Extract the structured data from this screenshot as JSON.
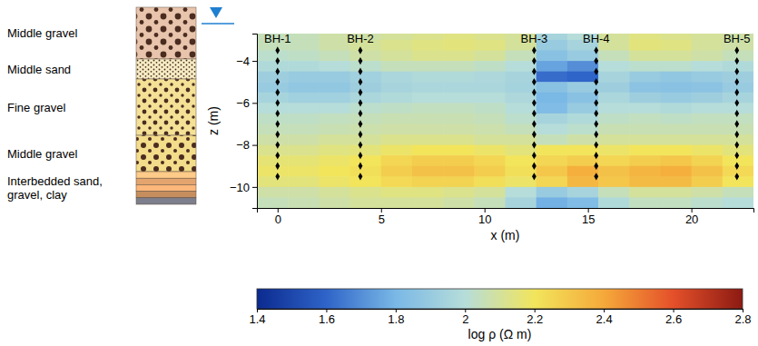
{
  "chart_data": {
    "type": "heatmap",
    "x_label": "x (m)",
    "y_label": "z (m)",
    "xlim": [
      -1,
      23
    ],
    "ylim": [
      -11,
      -2.7
    ],
    "xticks": [
      0,
      5,
      10,
      15,
      20
    ],
    "yticks": [
      {
        "value": -4,
        "label": "−4"
      },
      {
        "value": -6,
        "label": "−6"
      },
      {
        "value": -8,
        "label": "−8"
      },
      {
        "value": -10,
        "label": "−10"
      }
    ],
    "cells": {
      "x_edges": [
        -1,
        0.5,
        2,
        3.5,
        5,
        6.5,
        8,
        9.5,
        11,
        12.5,
        14,
        15.5,
        17,
        18.5,
        20,
        21.5,
        23
      ],
      "z_edges": [
        -2.5,
        -3,
        -3.5,
        -4,
        -4.5,
        -5,
        -5.5,
        -6,
        -6.5,
        -7,
        -7.5,
        -8,
        -8.5,
        -9,
        -9.5,
        -10,
        -10.5,
        -11
      ],
      "values": [
        [
          2.05,
          2.05,
          2.08,
          2.08,
          2.1,
          2.12,
          2.14,
          2.12,
          2.1,
          1.95,
          2.0,
          2.1,
          2.14,
          2.12,
          2.1,
          2.08
        ],
        [
          2.05,
          2.05,
          2.08,
          2.1,
          2.12,
          2.14,
          2.15,
          2.14,
          2.1,
          1.9,
          1.95,
          2.1,
          2.15,
          2.14,
          2.1,
          2.08
        ],
        [
          2.02,
          2.03,
          2.05,
          2.08,
          2.1,
          2.12,
          2.12,
          2.1,
          2.05,
          1.85,
          1.9,
          2.05,
          2.1,
          2.1,
          2.08,
          2.05
        ],
        [
          1.98,
          1.98,
          2.0,
          2.02,
          2.05,
          2.05,
          2.05,
          2.03,
          2.0,
          1.75,
          1.7,
          2.0,
          2.02,
          2.02,
          2.0,
          1.98
        ],
        [
          1.92,
          1.9,
          1.9,
          1.93,
          1.96,
          1.98,
          1.98,
          1.97,
          1.95,
          1.62,
          1.6,
          1.95,
          1.9,
          1.88,
          1.9,
          1.92
        ],
        [
          1.9,
          1.88,
          1.88,
          1.92,
          1.95,
          1.96,
          1.96,
          1.96,
          1.94,
          1.85,
          1.9,
          1.92,
          1.86,
          1.85,
          1.86,
          1.9
        ],
        [
          1.95,
          1.93,
          1.93,
          1.96,
          1.98,
          2.0,
          2.0,
          2.0,
          1.97,
          1.8,
          1.85,
          1.96,
          1.92,
          1.9,
          1.92,
          1.95
        ],
        [
          2.0,
          2.0,
          2.0,
          2.02,
          2.03,
          2.04,
          2.04,
          2.03,
          2.0,
          1.82,
          1.9,
          2.0,
          2.0,
          1.98,
          2.0,
          2.0
        ],
        [
          2.03,
          2.03,
          2.04,
          2.05,
          2.06,
          2.06,
          2.06,
          2.05,
          2.02,
          1.95,
          1.98,
          2.03,
          2.04,
          2.03,
          2.04,
          2.04
        ],
        [
          2.05,
          2.05,
          2.06,
          2.07,
          2.08,
          2.08,
          2.08,
          2.07,
          2.05,
          2.0,
          2.02,
          2.06,
          2.06,
          2.06,
          2.06,
          2.06
        ],
        [
          2.08,
          2.08,
          2.1,
          2.1,
          2.12,
          2.12,
          2.12,
          2.1,
          2.1,
          2.05,
          2.08,
          2.1,
          2.1,
          2.1,
          2.1,
          2.1
        ],
        [
          2.12,
          2.12,
          2.14,
          2.15,
          2.18,
          2.2,
          2.2,
          2.18,
          2.15,
          2.2,
          2.2,
          2.18,
          2.2,
          2.2,
          2.18,
          2.15
        ],
        [
          2.16,
          2.16,
          2.18,
          2.2,
          2.25,
          2.28,
          2.28,
          2.25,
          2.2,
          2.25,
          2.28,
          2.25,
          2.28,
          2.3,
          2.26,
          2.2
        ],
        [
          2.18,
          2.18,
          2.2,
          2.22,
          2.28,
          2.32,
          2.32,
          2.28,
          2.22,
          2.3,
          2.38,
          2.32,
          2.36,
          2.38,
          2.32,
          2.24
        ],
        [
          2.15,
          2.15,
          2.18,
          2.2,
          2.24,
          2.26,
          2.26,
          2.22,
          2.18,
          2.25,
          2.35,
          2.3,
          2.34,
          2.34,
          2.28,
          2.2
        ],
        [
          2.08,
          2.08,
          2.1,
          2.12,
          2.14,
          2.14,
          2.12,
          2.1,
          2.0,
          1.9,
          1.95,
          2.05,
          2.1,
          2.1,
          2.08,
          2.05
        ],
        [
          2.05,
          2.06,
          2.08,
          2.1,
          2.1,
          2.1,
          2.08,
          2.05,
          1.95,
          1.78,
          1.82,
          1.98,
          2.04,
          2.04,
          2.02,
          2.0
        ]
      ]
    },
    "colorbar": {
      "range": [
        1.4,
        2.8
      ],
      "ticks": [
        1.4,
        1.6,
        1.8,
        2,
        2.2,
        2.4,
        2.6,
        2.8
      ],
      "label": "log ρ (Ω m)"
    },
    "series": [
      {
        "name": "BH-1",
        "type": "scatter",
        "marker": "diamond",
        "color": "#000000",
        "x": [
          0,
          0,
          0,
          0,
          0,
          0,
          0,
          0,
          0,
          0,
          0,
          0,
          0
        ],
        "values": [
          -3.5,
          -4,
          -4.5,
          -5,
          -5.5,
          -6,
          -6.5,
          -7,
          -7.5,
          -8,
          -8.5,
          -9,
          -9.5
        ]
      },
      {
        "name": "BH-2",
        "type": "scatter",
        "marker": "diamond",
        "color": "#000000",
        "x": [
          4,
          4,
          4,
          4,
          4,
          4,
          4,
          4,
          4,
          4,
          4,
          4,
          4
        ],
        "values": [
          -3.5,
          -4,
          -4.5,
          -5,
          -5.5,
          -6,
          -6.5,
          -7,
          -7.5,
          -8,
          -8.5,
          -9,
          -9.5
        ]
      },
      {
        "name": "BH-3",
        "type": "scatter",
        "marker": "diamond",
        "color": "#000000",
        "x": [
          12.4,
          12.4,
          12.4,
          12.4,
          12.4,
          12.4,
          12.4,
          12.4,
          12.4,
          12.4,
          12.4,
          12.4,
          12.4
        ],
        "values": [
          -3.5,
          -4,
          -4.5,
          -5,
          -5.5,
          -6,
          -6.5,
          -7,
          -7.5,
          -8,
          -8.5,
          -9,
          -9.5
        ]
      },
      {
        "name": "BH-4",
        "type": "scatter",
        "marker": "diamond",
        "color": "#000000",
        "x": [
          15.4,
          15.4,
          15.4,
          15.4,
          15.4,
          15.4,
          15.4,
          15.4,
          15.4,
          15.4,
          15.4,
          15.4,
          15.4
        ],
        "values": [
          -3.5,
          -4,
          -4.5,
          -5,
          -5.5,
          -6,
          -6.5,
          -7,
          -7.5,
          -8,
          -8.5,
          -9,
          -9.5
        ]
      },
      {
        "name": "BH-5",
        "type": "scatter",
        "marker": "diamond",
        "color": "#000000",
        "x": [
          22.2,
          22.2,
          22.2,
          22.2,
          22.2,
          22.2,
          22.2,
          22.2,
          22.2,
          22.2,
          22.2,
          22.2,
          22.2
        ],
        "values": [
          -3.5,
          -4,
          -4.5,
          -5,
          -5.5,
          -6,
          -6.5,
          -7,
          -7.5,
          -8,
          -8.5,
          -9,
          -9.5
        ]
      }
    ],
    "stratigraphy": [
      {
        "label": "Middle gravel",
        "color": "#e8c4ac"
      },
      {
        "label": "Middle sand",
        "color": "#f7edc4"
      },
      {
        "label": "Fine gravel",
        "color": "#f4e196"
      },
      {
        "label": "Middle gravel",
        "color": "#f3dc8a"
      },
      {
        "label": "Interbedded sand, gravel, clay",
        "color": "#e4a46e"
      }
    ]
  }
}
